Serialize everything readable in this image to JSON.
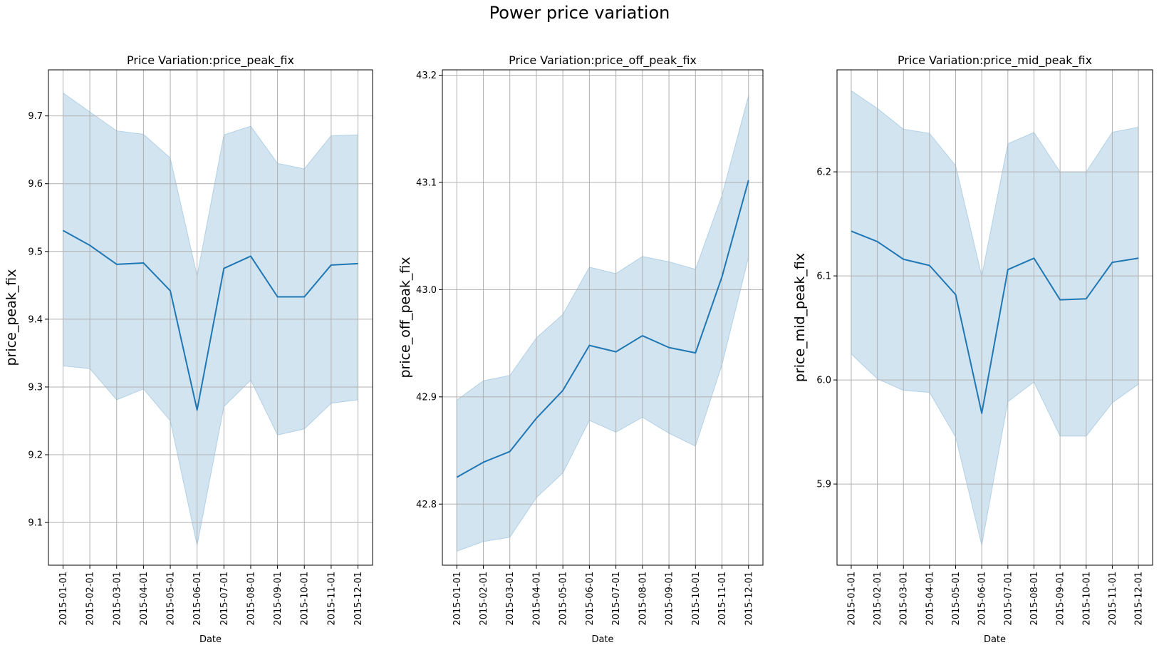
{
  "figure": {
    "title": "Power price variation"
  },
  "chart_data": [
    {
      "type": "line",
      "title": "Price Variation:price_peak_fix",
      "xlabel": "Date",
      "ylabel": "price_peak_fix",
      "x": [
        "2015-01-01",
        "2015-02-01",
        "2015-03-01",
        "2015-04-01",
        "2015-05-01",
        "2015-06-01",
        "2015-07-01",
        "2015-08-01",
        "2015-09-01",
        "2015-10-01",
        "2015-11-01",
        "2015-12-01"
      ],
      "yticks": [
        9.1,
        9.2,
        9.3,
        9.4,
        9.5,
        9.6,
        9.7
      ],
      "ylim": [
        9.037,
        9.768
      ],
      "grid": true,
      "line_color": "#1f77b4",
      "band_color": "#1f77b4",
      "series": [
        {
          "values": [
            9.531,
            9.509,
            9.481,
            9.483,
            9.442,
            9.266,
            9.475,
            9.493,
            9.433,
            9.433,
            9.48,
            9.482
          ],
          "lower": [
            9.331,
            9.327,
            9.281,
            9.297,
            9.25,
            9.066,
            9.271,
            9.31,
            9.229,
            9.238,
            9.276,
            9.281
          ],
          "upper": [
            9.734,
            9.706,
            9.678,
            9.673,
            9.638,
            9.464,
            9.672,
            9.685,
            9.63,
            9.622,
            9.671,
            9.672
          ]
        }
      ]
    },
    {
      "type": "line",
      "title": "Price Variation:price_off_peak_fix",
      "xlabel": "Date",
      "ylabel": "price_off_peak_fix",
      "x": [
        "2015-01-01",
        "2015-02-01",
        "2015-03-01",
        "2015-04-01",
        "2015-05-01",
        "2015-06-01",
        "2015-07-01",
        "2015-08-01",
        "2015-09-01",
        "2015-10-01",
        "2015-11-01",
        "2015-12-01"
      ],
      "yticks": [
        42.8,
        42.9,
        43.0,
        43.1,
        43.2
      ],
      "ylim": [
        42.743,
        43.205
      ],
      "grid": true,
      "line_color": "#1f77b4",
      "band_color": "#1f77b4",
      "series": [
        {
          "values": [
            42.825,
            42.839,
            42.849,
            42.88,
            42.906,
            42.948,
            42.942,
            42.957,
            42.946,
            42.941,
            43.012,
            43.102
          ],
          "lower": [
            42.756,
            42.765,
            42.769,
            42.806,
            42.829,
            42.878,
            42.867,
            42.881,
            42.866,
            42.854,
            42.93,
            43.03
          ],
          "upper": [
            42.897,
            42.915,
            42.92,
            42.955,
            42.977,
            43.021,
            43.015,
            43.031,
            43.026,
            43.019,
            43.088,
            43.181
          ]
        }
      ]
    },
    {
      "type": "line",
      "title": "Price Variation:price_mid_peak_fix",
      "xlabel": "Date",
      "ylabel": "price_mid_peak_fix",
      "x": [
        "2015-01-01",
        "2015-02-01",
        "2015-03-01",
        "2015-04-01",
        "2015-05-01",
        "2015-06-01",
        "2015-07-01",
        "2015-08-01",
        "2015-09-01",
        "2015-10-01",
        "2015-11-01",
        "2015-12-01"
      ],
      "yticks": [
        5.9,
        6.0,
        6.1,
        6.2
      ],
      "ylim": [
        5.822,
        6.298
      ],
      "grid": true,
      "line_color": "#1f77b4",
      "band_color": "#1f77b4",
      "series": [
        {
          "values": [
            6.143,
            6.133,
            6.116,
            6.11,
            6.082,
            5.968,
            6.106,
            6.117,
            6.077,
            6.078,
            6.113,
            6.117
          ],
          "lower": [
            6.025,
            6.001,
            5.99,
            5.988,
            5.945,
            5.841,
            5.979,
            5.998,
            5.946,
            5.946,
            5.978,
            5.996
          ],
          "upper": [
            6.278,
            6.261,
            6.241,
            6.237,
            6.206,
            6.1,
            6.227,
            6.238,
            6.2,
            6.2,
            6.238,
            6.243
          ]
        }
      ]
    }
  ]
}
